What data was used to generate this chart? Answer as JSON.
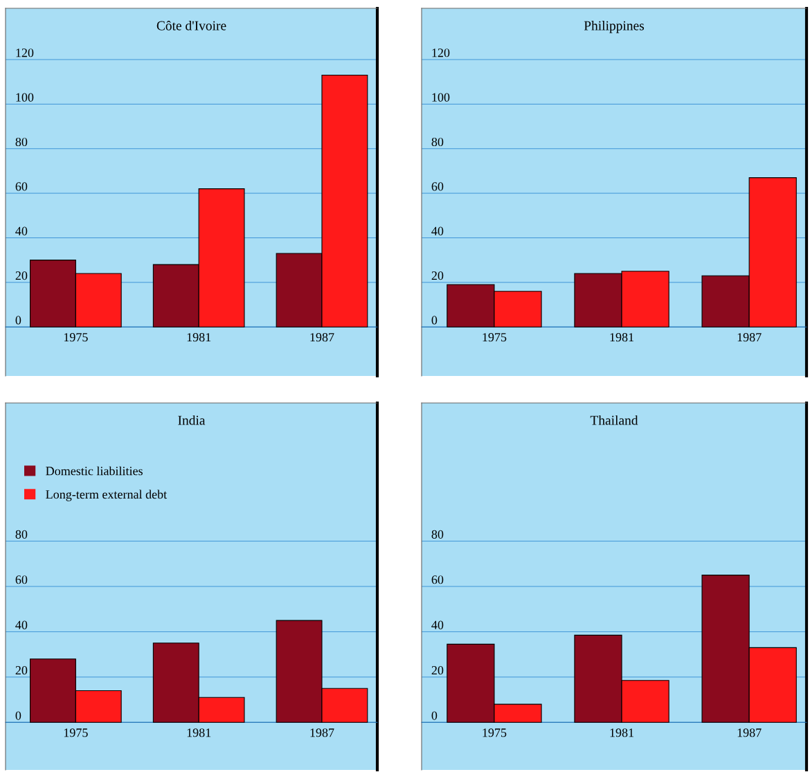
{
  "chart_data": [
    {
      "type": "bar",
      "title": "Côte d'Ivoire",
      "categories": [
        "1975",
        "1981",
        "1987"
      ],
      "ylim": [
        -22,
        143
      ],
      "yticks": [
        0,
        20,
        40,
        60,
        80,
        100,
        120
      ],
      "grid": "y",
      "legend": false,
      "series": [
        {
          "color": "#8b0a1e",
          "values": [
            30,
            28,
            33
          ]
        },
        {
          "color": "#ff1a1a",
          "values": [
            24,
            62,
            113
          ]
        }
      ]
    },
    {
      "type": "bar",
      "title": "Philippines",
      "categories": [
        "1975",
        "1981",
        "1987"
      ],
      "ylim": [
        -22,
        143
      ],
      "yticks": [
        0,
        20,
        40,
        60,
        80,
        100,
        120
      ],
      "grid": "y",
      "legend": false,
      "series": [
        {
          "color": "#8b0a1e",
          "values": [
            19,
            24,
            23
          ]
        },
        {
          "color": "#ff1a1a",
          "values": [
            16,
            25,
            67
          ]
        }
      ]
    },
    {
      "type": "bar",
      "title": "India",
      "categories": [
        "1975",
        "1981",
        "1987"
      ],
      "ylim": [
        -21,
        141
      ],
      "yticks": [
        0,
        20,
        40,
        60,
        80
      ],
      "grid": "y",
      "legend": "top left",
      "series": [
        {
          "name": "Domestic liabilities",
          "color": "#8b0a1e",
          "values": [
            28,
            35,
            45
          ]
        },
        {
          "name": "Long-term external debt",
          "color": "#ff1a1a",
          "values": [
            14,
            11,
            15
          ]
        }
      ]
    },
    {
      "type": "bar",
      "title": "Thailand",
      "categories": [
        "1975",
        "1981",
        "1987"
      ],
      "ylim": [
        -21,
        141
      ],
      "yticks": [
        0,
        20,
        40,
        60,
        80
      ],
      "grid": "y",
      "legend": false,
      "series": [
        {
          "color": "#8b0a1e",
          "values": [
            34.5,
            38.5,
            65
          ]
        },
        {
          "color": "#ff1a1a",
          "values": [
            8,
            18.5,
            33
          ]
        }
      ]
    }
  ]
}
